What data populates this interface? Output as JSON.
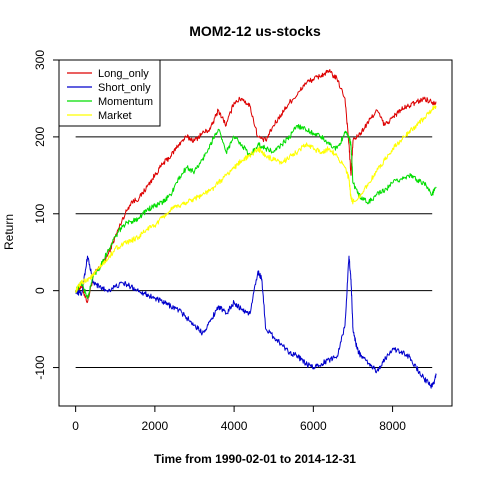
{
  "chart_data": {
    "type": "line",
    "title": "MOM2-12 us-stocks",
    "xlabel": "Time from 1990-02-01 to 2014-12-31",
    "ylabel": "Return",
    "xlim": [
      -420,
      9500
    ],
    "ylim": [
      -150,
      300
    ],
    "x_ticks": [
      0,
      2000,
      4000,
      6000,
      8000
    ],
    "y_ticks": [
      -100,
      0,
      100,
      200,
      300
    ],
    "reference_lines": [
      -100,
      0,
      100,
      200
    ],
    "grid": false,
    "legend_position": "top-left",
    "series": [
      {
        "name": "Long_only",
        "color": "#dd0000",
        "x": [
          0,
          150,
          300,
          450,
          600,
          800,
          1000,
          1200,
          1400,
          1600,
          1800,
          2000,
          2200,
          2400,
          2600,
          2800,
          3000,
          3200,
          3400,
          3600,
          3800,
          4000,
          4200,
          4400,
          4600,
          4800,
          5000,
          5200,
          5400,
          5600,
          5800,
          6000,
          6200,
          6400,
          6600,
          6800,
          6900,
          6950,
          7000,
          7200,
          7400,
          7600,
          7800,
          8000,
          8200,
          8400,
          8600,
          8800,
          9000,
          9100
        ],
        "y": [
          0,
          5,
          -15,
          20,
          30,
          45,
          70,
          95,
          115,
          120,
          135,
          150,
          165,
          175,
          190,
          200,
          195,
          205,
          210,
          235,
          215,
          245,
          250,
          240,
          200,
          195,
          215,
          230,
          245,
          255,
          270,
          275,
          280,
          285,
          275,
          250,
          190,
          150,
          195,
          205,
          220,
          235,
          215,
          225,
          235,
          240,
          245,
          250,
          245,
          245
        ]
      },
      {
        "name": "Short_only",
        "color": "#0000cc",
        "x": [
          0,
          150,
          300,
          450,
          600,
          800,
          1000,
          1200,
          1400,
          1600,
          1800,
          2000,
          2200,
          2400,
          2600,
          2800,
          3000,
          3200,
          3400,
          3600,
          3800,
          4000,
          4200,
          4400,
          4600,
          4700,
          4800,
          5000,
          5200,
          5400,
          5600,
          5800,
          6000,
          6200,
          6400,
          6600,
          6800,
          6900,
          6950,
          7000,
          7100,
          7200,
          7400,
          7600,
          7800,
          8000,
          8200,
          8400,
          8600,
          8800,
          9000,
          9100
        ],
        "y": [
          0,
          -5,
          45,
          10,
          5,
          0,
          5,
          10,
          5,
          0,
          -5,
          -10,
          -15,
          -20,
          -25,
          -35,
          -45,
          -55,
          -40,
          -20,
          -30,
          -15,
          -25,
          -30,
          25,
          15,
          -50,
          -60,
          -70,
          -80,
          -85,
          -95,
          -100,
          -95,
          -90,
          -85,
          -45,
          45,
          15,
          -50,
          -75,
          -85,
          -95,
          -105,
          -90,
          -75,
          -80,
          -85,
          -100,
          -115,
          -125,
          -110
        ]
      },
      {
        "name": "Momentum",
        "color": "#00dd00",
        "x": [
          0,
          150,
          300,
          450,
          600,
          800,
          1000,
          1200,
          1400,
          1600,
          1800,
          2000,
          2200,
          2400,
          2600,
          2800,
          3000,
          3200,
          3400,
          3600,
          3800,
          4000,
          4200,
          4400,
          4600,
          4800,
          5000,
          5200,
          5400,
          5600,
          5800,
          6000,
          6200,
          6400,
          6600,
          6800,
          6900,
          6950,
          7000,
          7200,
          7400,
          7600,
          7800,
          8000,
          8200,
          8400,
          8600,
          8800,
          9000,
          9100
        ],
        "y": [
          0,
          10,
          -10,
          20,
          30,
          50,
          70,
          85,
          90,
          95,
          105,
          110,
          115,
          125,
          145,
          160,
          155,
          170,
          190,
          210,
          180,
          200,
          190,
          175,
          190,
          185,
          180,
          190,
          200,
          215,
          210,
          205,
          200,
          190,
          185,
          205,
          200,
          190,
          140,
          120,
          115,
          125,
          130,
          140,
          145,
          150,
          145,
          140,
          125,
          135
        ]
      },
      {
        "name": "Market",
        "color": "#ffff00",
        "x": [
          0,
          150,
          300,
          450,
          600,
          800,
          1000,
          1200,
          1400,
          1600,
          1800,
          2000,
          2200,
          2400,
          2600,
          2800,
          3000,
          3200,
          3400,
          3600,
          3800,
          4000,
          4200,
          4400,
          4600,
          4800,
          5000,
          5200,
          5400,
          5600,
          5800,
          6000,
          6200,
          6400,
          6600,
          6800,
          6900,
          6950,
          7000,
          7200,
          7400,
          7600,
          7800,
          8000,
          8200,
          8400,
          8600,
          8800,
          9000,
          9100
        ],
        "y": [
          0,
          10,
          15,
          20,
          30,
          40,
          55,
          60,
          65,
          70,
          80,
          85,
          95,
          105,
          110,
          115,
          120,
          125,
          130,
          140,
          150,
          160,
          170,
          175,
          185,
          175,
          170,
          165,
          175,
          180,
          190,
          185,
          180,
          185,
          175,
          160,
          145,
          120,
          115,
          125,
          140,
          155,
          170,
          185,
          195,
          205,
          215,
          225,
          235,
          240
        ]
      }
    ]
  }
}
